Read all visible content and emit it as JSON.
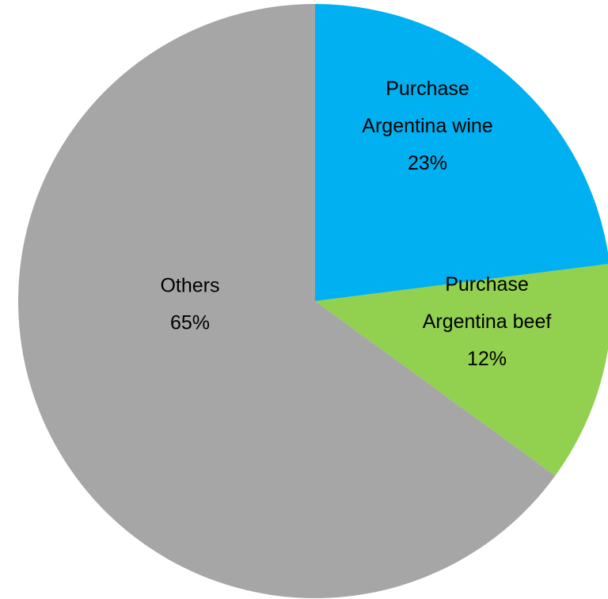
{
  "chart_data": {
    "type": "pie",
    "start_angle_deg": 0,
    "direction": "clockwise",
    "slices": [
      {
        "label_lines": [
          "Purchase",
          "Argentina wine"
        ],
        "value": 23,
        "display": "23%",
        "color": "#00b0f0"
      },
      {
        "label_lines": [
          "Purchase",
          "Argentina beef"
        ],
        "value": 12,
        "display": "12%",
        "color": "#92d050"
      },
      {
        "label_lines": [
          "Others"
        ],
        "value": 65,
        "display": "65%",
        "color": "#a6a6a6"
      }
    ],
    "legend": "none",
    "data_labels": "inside"
  }
}
